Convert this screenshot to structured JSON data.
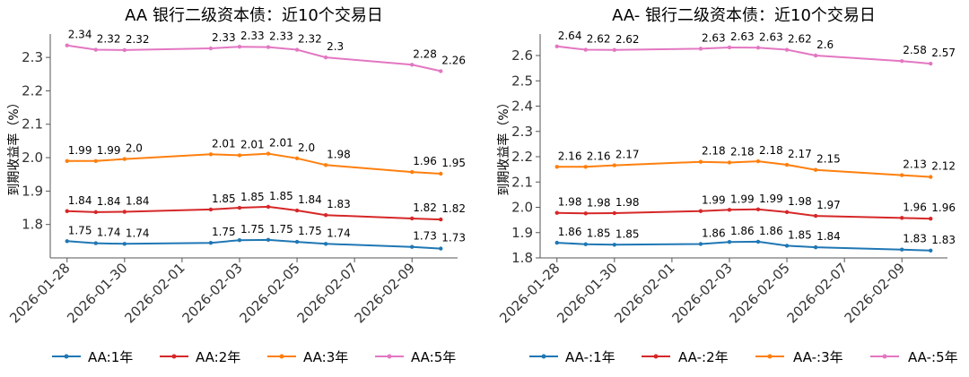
{
  "colors": {
    "1年": "#1f77b4",
    "2年": "#d62728",
    "3年": "#ff7f0e",
    "5年": "#e377c2"
  },
  "chart_data": [
    {
      "type": "line",
      "title": "AA 银行二级资本债：近10个交易日",
      "xlabel": "",
      "ylabel": "到期收益率（%）",
      "x": [
        "2026-01-28",
        "2026-01-29",
        "2026-01-30",
        "2026-02-02",
        "2026-02-03",
        "2026-02-04",
        "2026-02-05",
        "2026-02-06",
        "2026-02-09",
        "2026-02-10"
      ],
      "xticks": [
        "2026-01-28",
        "2026-01-30",
        "2026-02-01",
        "2026-02-03",
        "2026-02-05",
        "2026-02-07",
        "2026-02-09"
      ],
      "ylim": [
        1.7,
        2.37
      ],
      "yticks": [
        1.8,
        1.9,
        2.0,
        2.1,
        2.2,
        2.3
      ],
      "ytick_labels": [
        "1.8",
        "1.9",
        "2.0",
        "2.1",
        "2.2",
        "2.3"
      ],
      "legend_position": "bottom",
      "series": [
        {
          "name": "AA:1年",
          "color": "#1f77b4",
          "values": [
            1.75,
            1.744,
            1.742,
            1.745,
            1.753,
            1.754,
            1.748,
            1.742,
            1.733,
            1.728
          ],
          "labels": [
            "1.75",
            "1.74",
            "1.74",
            "1.75",
            "1.75",
            "1.75",
            "1.75",
            "1.74",
            "1.73",
            "1.73"
          ]
        },
        {
          "name": "AA:2年",
          "color": "#d62728",
          "values": [
            1.84,
            1.837,
            1.838,
            1.845,
            1.85,
            1.853,
            1.842,
            1.828,
            1.818,
            1.815
          ],
          "labels": [
            "1.84",
            "1.84",
            "1.84",
            "1.85",
            "1.85",
            "1.85",
            "1.84",
            "1.83",
            "1.82",
            "1.82"
          ]
        },
        {
          "name": "AA:3年",
          "color": "#ff7f0e",
          "values": [
            1.99,
            1.99,
            1.996,
            2.01,
            2.007,
            2.012,
            1.998,
            1.978,
            1.957,
            1.952
          ],
          "labels": [
            "1.99",
            "1.99",
            "2.0",
            "2.01",
            "2.01",
            "2.01",
            "2.0",
            "1.98",
            "1.96",
            "1.95"
          ]
        },
        {
          "name": "AA:5年",
          "color": "#e377c2",
          "values": [
            2.336,
            2.323,
            2.322,
            2.327,
            2.332,
            2.331,
            2.323,
            2.3,
            2.278,
            2.259
          ],
          "labels": [
            "2.34",
            "2.32",
            "2.32",
            "2.33",
            "2.33",
            "2.33",
            "2.32",
            "2.3",
            "2.28",
            "2.26"
          ]
        }
      ]
    },
    {
      "type": "line",
      "title": "AA- 银行二级资本债：近10个交易日",
      "xlabel": "",
      "ylabel": "到期收益率（%）",
      "x": [
        "2026-01-28",
        "2026-01-29",
        "2026-01-30",
        "2026-02-02",
        "2026-02-03",
        "2026-02-04",
        "2026-02-05",
        "2026-02-06",
        "2026-02-09",
        "2026-02-10"
      ],
      "xticks": [
        "2026-01-28",
        "2026-01-30",
        "2026-02-01",
        "2026-02-03",
        "2026-02-05",
        "2026-02-07",
        "2026-02-09"
      ],
      "ylim": [
        1.8,
        2.685
      ],
      "yticks": [
        1.8,
        1.9,
        2.0,
        2.1,
        2.2,
        2.3,
        2.4,
        2.5,
        2.6
      ],
      "ytick_labels": [
        "1.8",
        "1.9",
        "2.0",
        "2.1",
        "2.2",
        "2.3",
        "2.4",
        "2.5",
        "2.6"
      ],
      "legend_position": "bottom",
      "series": [
        {
          "name": "AA-:1年",
          "color": "#1f77b4",
          "values": [
            1.86,
            1.854,
            1.852,
            1.855,
            1.863,
            1.864,
            1.848,
            1.842,
            1.833,
            1.829
          ],
          "labels": [
            "1.86",
            "1.85",
            "1.85",
            "1.86",
            "1.86",
            "1.86",
            "1.85",
            "1.84",
            "1.83",
            "1.83"
          ]
        },
        {
          "name": "AA-:2年",
          "color": "#d62728",
          "values": [
            1.978,
            1.976,
            1.977,
            1.985,
            1.99,
            1.992,
            1.981,
            1.966,
            1.958,
            1.955
          ],
          "labels": [
            "1.98",
            "1.98",
            "1.98",
            "1.99",
            "1.99",
            "1.99",
            "1.98",
            "1.97",
            "1.96",
            "1.96"
          ]
        },
        {
          "name": "AA-:3年",
          "color": "#ff7f0e",
          "values": [
            2.16,
            2.16,
            2.166,
            2.18,
            2.177,
            2.182,
            2.168,
            2.148,
            2.127,
            2.12
          ],
          "labels": [
            "2.16",
            "2.16",
            "2.17",
            "2.18",
            "2.18",
            "2.18",
            "2.17",
            "2.15",
            "2.13",
            "2.12"
          ]
        },
        {
          "name": "AA-:5年",
          "color": "#e377c2",
          "values": [
            2.636,
            2.623,
            2.622,
            2.627,
            2.632,
            2.631,
            2.623,
            2.6,
            2.578,
            2.568
          ],
          "labels": [
            "2.64",
            "2.62",
            "2.62",
            "2.63",
            "2.63",
            "2.63",
            "2.62",
            "2.6",
            "2.58",
            "2.57"
          ]
        }
      ]
    }
  ]
}
